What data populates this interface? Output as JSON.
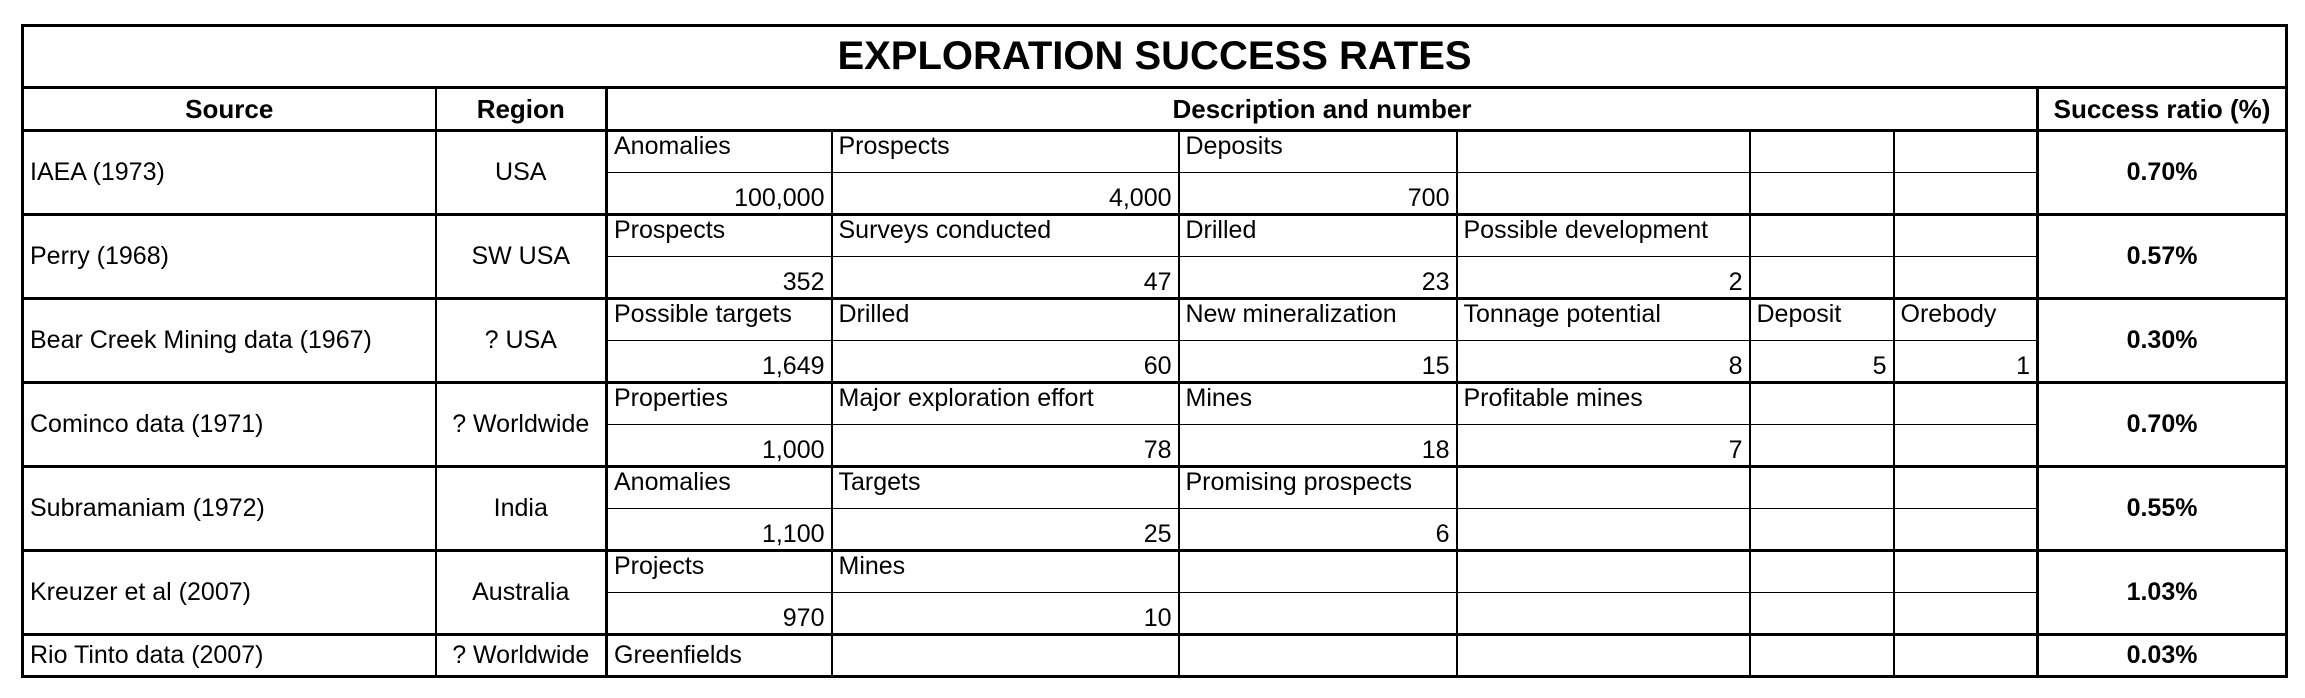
{
  "title": "EXPLORATION SUCCESS RATES",
  "headers": {
    "source": "Source",
    "region": "Region",
    "description": "Description and number",
    "ratio": "Success ratio (%)"
  },
  "rows": [
    {
      "source": "IAEA (1973)",
      "region": "USA",
      "labels": [
        "Anomalies",
        "Prospects",
        "Deposits",
        "",
        "",
        ""
      ],
      "numbers": [
        "100,000",
        "4,000",
        "700",
        "",
        "",
        ""
      ],
      "ratio": "0.70%"
    },
    {
      "source": "Perry (1968)",
      "region": "SW USA",
      "labels": [
        "Prospects",
        "Surveys conducted",
        "Drilled",
        "Possible development",
        "",
        ""
      ],
      "numbers": [
        "352",
        "47",
        "23",
        "2",
        "",
        ""
      ],
      "ratio": "0.57%"
    },
    {
      "source": "Bear Creek Mining data (1967)",
      "region": "? USA",
      "labels": [
        "Possible targets",
        "Drilled",
        "New mineralization",
        "Tonnage potential",
        "Deposit",
        "Orebody"
      ],
      "numbers": [
        "1,649",
        "60",
        "15",
        "8",
        "5",
        "1"
      ],
      "ratio": "0.30%"
    },
    {
      "source": "Cominco data (1971)",
      "region": "? Worldwide",
      "labels": [
        "Properties",
        "Major exploration effort",
        "Mines",
        "Profitable mines",
        "",
        ""
      ],
      "numbers": [
        "1,000",
        "78",
        "18",
        "7",
        "",
        ""
      ],
      "ratio": "0.70%"
    },
    {
      "source": "Subramaniam (1972)",
      "region": "India",
      "labels": [
        "Anomalies",
        "Targets",
        "Promising prospects",
        "",
        "",
        ""
      ],
      "numbers": [
        "1,100",
        "25",
        "6",
        "",
        "",
        ""
      ],
      "ratio": "0.55%"
    },
    {
      "source": "Kreuzer et al (2007)",
      "region": "Australia",
      "labels": [
        "Projects",
        "Mines",
        "",
        "",
        "",
        ""
      ],
      "numbers": [
        "970",
        "10",
        "",
        "",
        "",
        ""
      ],
      "ratio": "1.03%"
    }
  ],
  "last_row": {
    "source": "Rio Tinto data (2007)",
    "region": "? Worldwide",
    "labels": [
      "Greenfields",
      "",
      "",
      "",
      "",
      ""
    ],
    "ratio": "0.03%"
  }
}
